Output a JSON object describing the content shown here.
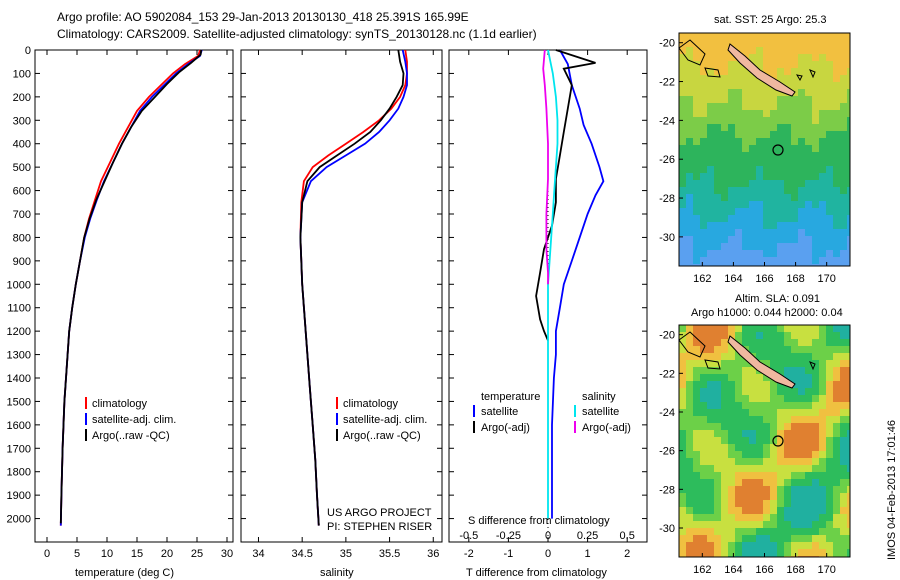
{
  "header": {
    "line1": "Argo profile: AO 5902084_153 29-Jan-2013 20130130_418 25.391S 165.99E",
    "line2": "Climatology: CARS2009. Satellite-adjusted climatology: synTS_20130128.nc (1.1d earlier)"
  },
  "colors": {
    "climatology": "#ff0000",
    "satellite": "#0000ff",
    "argo": "#000000",
    "sat_salinity": "#00e5ee",
    "argo_salinity": "#ee00ee"
  },
  "chart_data": [
    {
      "type": "line",
      "panel": "temperature",
      "xlabel": "temperature (deg C)",
      "ylabel": "",
      "xlim": [
        -2,
        31
      ],
      "ylim": [
        2100,
        0
      ],
      "xticks": [
        "0",
        "5",
        "10",
        "15",
        "20",
        "25",
        "30"
      ],
      "yticks": [
        "0",
        "100",
        "200",
        "300",
        "400",
        "500",
        "600",
        "700",
        "800",
        "900",
        "1000",
        "1100",
        "1200",
        "1300",
        "1400",
        "1500",
        "1600",
        "1700",
        "1800",
        "1900",
        "2000"
      ],
      "legend": [
        "climatology",
        "satellite-adj. clim.",
        "Argo(..raw -QC)"
      ],
      "series": [
        {
          "name": "climatology",
          "color": "#ff0000",
          "x": [
            25.5,
            25.2,
            23,
            21,
            19,
            17,
            15,
            13.5,
            12,
            10.5,
            9,
            8,
            7,
            6.2,
            5.5,
            4.8,
            4.2,
            3.7,
            3.3,
            2.9,
            2.6,
            2.4,
            2.3
          ],
          "y": [
            0,
            25,
            60,
            100,
            150,
            200,
            260,
            330,
            400,
            480,
            560,
            640,
            720,
            800,
            900,
            1000,
            1100,
            1200,
            1350,
            1500,
            1700,
            1900,
            2030
          ]
        },
        {
          "name": "satellite-adj. clim.",
          "color": "#0000ff",
          "x": [
            25.8,
            25.5,
            23.5,
            21.5,
            19.5,
            17.5,
            15.5,
            14,
            12.5,
            11,
            9.5,
            8.3,
            7.2,
            6.3,
            5.5,
            4.8,
            4.2,
            3.7,
            3.3,
            2.9,
            2.6,
            2.4,
            2.3
          ],
          "y": [
            0,
            25,
            60,
            100,
            150,
            200,
            260,
            330,
            400,
            480,
            560,
            640,
            720,
            800,
            900,
            1000,
            1100,
            1200,
            1350,
            1500,
            1700,
            1900,
            2030
          ]
        },
        {
          "name": "Argo(..raw -QC)",
          "color": "#000000",
          "x": [
            25.7,
            25.6,
            24,
            22,
            20,
            18,
            15.8,
            14,
            12.5,
            11,
            9.6,
            8.2,
            7.1,
            6.2,
            5.5,
            4.8,
            4.2,
            3.7,
            3.3,
            2.9,
            2.6,
            2.4,
            2.3
          ],
          "y": [
            0,
            20,
            55,
            95,
            145,
            200,
            260,
            330,
            400,
            480,
            560,
            640,
            720,
            800,
            900,
            1000,
            1100,
            1200,
            1350,
            1500,
            1700,
            1900,
            2020
          ]
        }
      ]
    },
    {
      "type": "line",
      "panel": "salinity",
      "xlabel": "salinity",
      "xlim": [
        33.8,
        36.1
      ],
      "ylim": [
        2100,
        0
      ],
      "xticks": [
        "34",
        "34.5",
        "35",
        "35.5",
        "36"
      ],
      "legend": [
        "climatology",
        "satellite-adj. clim.",
        "Argo(..raw -QC)"
      ],
      "series": [
        {
          "name": "climatology",
          "color": "#ff0000",
          "x": [
            35.68,
            35.7,
            35.7,
            35.68,
            35.62,
            35.52,
            35.38,
            35.2,
            35.0,
            34.8,
            34.62,
            34.52,
            34.49,
            34.48,
            34.5,
            34.53,
            34.56,
            34.59,
            34.62,
            34.65,
            34.67,
            34.69
          ],
          "y": [
            0,
            50,
            100,
            150,
            200,
            250,
            300,
            350,
            400,
            450,
            500,
            560,
            650,
            800,
            1000,
            1150,
            1300,
            1450,
            1600,
            1750,
            1900,
            2030
          ]
        },
        {
          "name": "satellite-adj. clim.",
          "color": "#0000ff",
          "x": [
            35.65,
            35.68,
            35.7,
            35.7,
            35.66,
            35.6,
            35.5,
            35.38,
            35.22,
            35.0,
            34.78,
            34.6,
            34.5,
            34.48,
            34.5,
            34.53,
            34.56,
            34.59,
            34.62,
            34.65,
            34.67,
            34.69
          ],
          "y": [
            0,
            50,
            100,
            150,
            200,
            250,
            300,
            350,
            400,
            450,
            500,
            560,
            650,
            800,
            1000,
            1150,
            1300,
            1450,
            1600,
            1750,
            1900,
            2030
          ]
        },
        {
          "name": "Argo(..raw -QC)",
          "color": "#000000",
          "x": [
            35.6,
            35.62,
            35.66,
            35.65,
            35.58,
            35.5,
            35.4,
            35.28,
            35.1,
            34.9,
            34.7,
            34.56,
            34.5,
            34.48,
            34.5,
            34.53,
            34.56,
            34.59,
            34.62,
            34.65,
            34.67,
            34.69
          ],
          "y": [
            0,
            50,
            100,
            150,
            200,
            250,
            300,
            350,
            400,
            450,
            500,
            560,
            650,
            800,
            1000,
            1150,
            1300,
            1450,
            1600,
            1750,
            1900,
            2030
          ]
        }
      ],
      "annotation": [
        "US ARGO PROJECT",
        "PI: STEPHEN RISER"
      ]
    },
    {
      "type": "line",
      "panel": "difference",
      "xlabel": "T difference from climatology",
      "top_xlabel": "S difference from climatology",
      "xlim": [
        -2.5,
        2.5
      ],
      "ylim": [
        2100,
        0
      ],
      "xticks": [
        "-2",
        "-1",
        "0",
        "1",
        "2"
      ],
      "top_xticks": [
        "-0.5",
        "-0.25",
        "0",
        "0.25",
        "0.5"
      ],
      "legend_temperature": [
        "temperature",
        "satellite",
        "Argo(-adj)"
      ],
      "legend_salinity": [
        "salinity",
        "satellite",
        "Argo(-adj)"
      ],
      "series": [
        {
          "name": "satellite",
          "color": "#0000ff",
          "x": [
            0.3,
            0.5,
            0.6,
            0.8,
            0.9,
            1.1,
            1.3,
            1.4,
            1.2,
            1.0,
            0.8,
            0.6,
            0.4,
            0.3,
            0.2,
            0.2,
            0.15,
            0.1,
            0.1,
            0.1
          ],
          "y": [
            0,
            60,
            150,
            250,
            320,
            400,
            500,
            560,
            620,
            700,
            800,
            900,
            1000,
            1100,
            1200,
            1300,
            1400,
            1600,
            1800,
            2000
          ]
        },
        {
          "name": "Argo(-adj)",
          "color": "#000000",
          "x": [
            0.2,
            1.2,
            0.4,
            0.6,
            0.5,
            0.4,
            0.3,
            0.2,
            0.2,
            0.1,
            -0.1,
            -0.2,
            -0.3,
            -0.2,
            -0.1,
            0
          ],
          "y": [
            0,
            55,
            80,
            150,
            250,
            350,
            450,
            550,
            650,
            750,
            850,
            950,
            1050,
            1150,
            1200,
            1240
          ]
        },
        {
          "name": "satellite",
          "color": "#00e5ee",
          "x": [
            0.0,
            0.03,
            0.05,
            0.06,
            0.06,
            0.05,
            0.04,
            0.03,
            0.02,
            0.01,
            0.0,
            0.0,
            0.0,
            0.0,
            0.0
          ],
          "y": [
            0,
            100,
            200,
            300,
            400,
            500,
            600,
            700,
            800,
            900,
            1000,
            1200,
            1500,
            1800,
            2000
          ]
        },
        {
          "name": "Argo(-adj)",
          "color": "#ee00ee",
          "x": [
            -0.02,
            -0.03,
            -0.02,
            -0.01,
            0.0,
            0.0,
            -0.01,
            -0.01,
            0.0,
            0.0
          ],
          "y": [
            0,
            80,
            150,
            250,
            400,
            550,
            700,
            850,
            950,
            1000
          ]
        }
      ]
    },
    {
      "type": "heatmap",
      "panel": "sst-map",
      "title": "sat. SST: 25 Argo: 25.3",
      "xlim": [
        160.5,
        171.5
      ],
      "ylim": [
        -31.5,
        -19.5
      ],
      "xticks": [
        "162",
        "164",
        "166",
        "168",
        "170"
      ],
      "yticks": [
        "-20",
        "-22",
        "-24",
        "-26",
        "-28",
        "-30"
      ],
      "marker": {
        "lon": 165.99,
        "lat": -25.391
      }
    },
    {
      "type": "heatmap",
      "panel": "sla-map",
      "title_lines": [
        "Altim. SLA: 0.091",
        "Argo h1000: 0.044 h2000: 0.04"
      ],
      "xlim": [
        160.5,
        171.5
      ],
      "ylim": [
        -31.5,
        -19.5
      ],
      "xticks": [
        "162",
        "164",
        "166",
        "168",
        "170"
      ],
      "yticks": [
        "-20",
        "-22",
        "-24",
        "-26",
        "-28",
        "-30"
      ],
      "marker": {
        "lon": 165.99,
        "lat": -25.391
      }
    }
  ],
  "footer_stamp": "IMOS 04-Feb-2013 17:01:46"
}
